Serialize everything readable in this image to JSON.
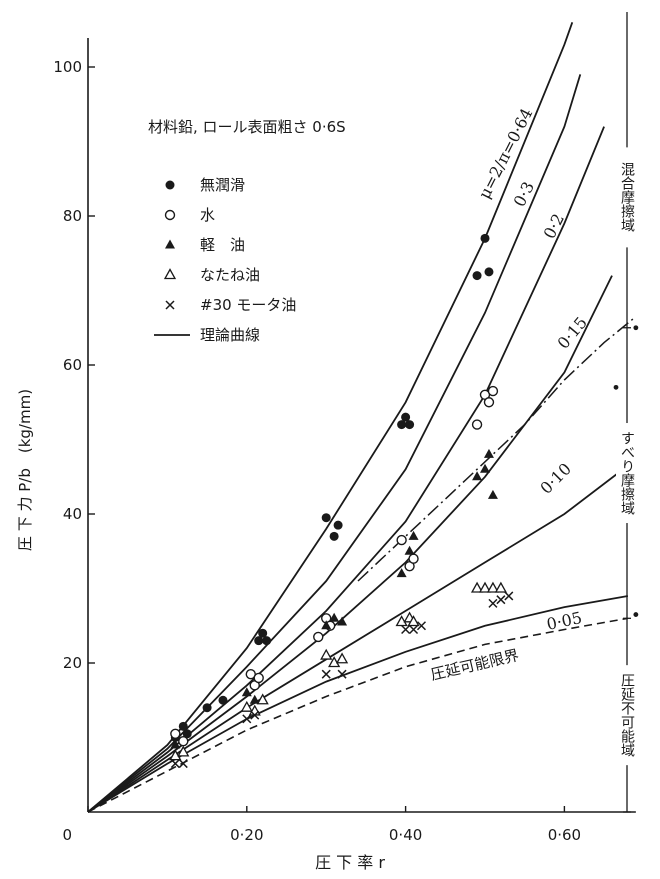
{
  "chart_data": {
    "type": "scatter",
    "title": "材料鉛, ロール表面粗さ 0·6S",
    "xlabel": "圧 下 率 r",
    "ylabel": "圧 下 力 P/b　(kg/mm)",
    "xlim": [
      0,
      0.69
    ],
    "ylim": [
      0,
      105
    ],
    "x_ticks": [
      {
        "value": 0,
        "label": "0"
      },
      {
        "value": 0.2,
        "label": "0·20"
      },
      {
        "value": 0.4,
        "label": "0·40"
      },
      {
        "value": 0.6,
        "label": "0·60"
      }
    ],
    "y_ticks": [
      {
        "value": 20,
        "label": "20"
      },
      {
        "value": 40,
        "label": "40"
      },
      {
        "value": 60,
        "label": "60"
      },
      {
        "value": 80,
        "label": "80"
      },
      {
        "value": 100,
        "label": "100"
      }
    ],
    "grid": false,
    "legend_position": "top-left",
    "legend": [
      {
        "marker": "filled-circle",
        "label": "無潤滑"
      },
      {
        "marker": "open-circle",
        "label": "水"
      },
      {
        "marker": "filled-triangle",
        "label": "軽　油"
      },
      {
        "marker": "open-triangle",
        "label": "なたね油"
      },
      {
        "marker": "cross",
        "label": "#30 モータ油"
      },
      {
        "marker": "line",
        "label": "理論曲線"
      }
    ],
    "series": [
      {
        "name": "無潤滑",
        "marker": "filled-circle",
        "points": [
          [
            0.11,
            10
          ],
          [
            0.12,
            11.5
          ],
          [
            0.125,
            10.5
          ],
          [
            0.15,
            14
          ],
          [
            0.17,
            15
          ],
          [
            0.215,
            23
          ],
          [
            0.22,
            24
          ],
          [
            0.225,
            23
          ],
          [
            0.3,
            39.5
          ],
          [
            0.31,
            37
          ],
          [
            0.315,
            38.5
          ],
          [
            0.395,
            52
          ],
          [
            0.4,
            53
          ],
          [
            0.405,
            52
          ],
          [
            0.49,
            72
          ],
          [
            0.5,
            77
          ],
          [
            0.505,
            72.5
          ]
        ]
      },
      {
        "name": "水",
        "marker": "open-circle",
        "points": [
          [
            0.11,
            10.5
          ],
          [
            0.12,
            9.5
          ],
          [
            0.205,
            18.5
          ],
          [
            0.21,
            17
          ],
          [
            0.215,
            18
          ],
          [
            0.29,
            23.5
          ],
          [
            0.3,
            26
          ],
          [
            0.305,
            25
          ],
          [
            0.395,
            36.5
          ],
          [
            0.405,
            33
          ],
          [
            0.41,
            34
          ],
          [
            0.49,
            52
          ],
          [
            0.5,
            56
          ],
          [
            0.505,
            55
          ],
          [
            0.51,
            56.5
          ]
        ]
      },
      {
        "name": "軽　油",
        "marker": "filled-triangle",
        "points": [
          [
            0.11,
            9
          ],
          [
            0.12,
            8
          ],
          [
            0.2,
            16
          ],
          [
            0.21,
            15
          ],
          [
            0.3,
            25
          ],
          [
            0.31,
            26
          ],
          [
            0.32,
            25.5
          ],
          [
            0.395,
            32
          ],
          [
            0.405,
            35
          ],
          [
            0.41,
            37
          ],
          [
            0.49,
            45
          ],
          [
            0.5,
            46
          ],
          [
            0.505,
            48
          ],
          [
            0.51,
            42.5
          ]
        ]
      },
      {
        "name": "なたね油",
        "marker": "open-triangle",
        "points": [
          [
            0.11,
            7.5
          ],
          [
            0.12,
            8
          ],
          [
            0.2,
            14
          ],
          [
            0.21,
            13.5
          ],
          [
            0.22,
            15
          ],
          [
            0.3,
            21
          ],
          [
            0.31,
            20
          ],
          [
            0.32,
            20.5
          ],
          [
            0.395,
            25.5
          ],
          [
            0.405,
            26
          ],
          [
            0.41,
            25.5
          ],
          [
            0.49,
            30
          ],
          [
            0.5,
            30
          ],
          [
            0.51,
            30
          ],
          [
            0.52,
            30
          ]
        ]
      },
      {
        "name": "#30 モータ油",
        "marker": "cross",
        "points": [
          [
            0.11,
            6.5
          ],
          [
            0.12,
            6.5
          ],
          [
            0.2,
            12.5
          ],
          [
            0.21,
            13
          ],
          [
            0.3,
            18.5
          ],
          [
            0.32,
            18.5
          ],
          [
            0.4,
            24.5
          ],
          [
            0.41,
            24.5
          ],
          [
            0.42,
            25
          ],
          [
            0.51,
            28
          ],
          [
            0.52,
            28.5
          ],
          [
            0.53,
            29
          ]
        ]
      }
    ],
    "theory_curves": [
      {
        "label": "μ=2/π=0·64",
        "points": [
          [
            0,
            0
          ],
          [
            0.1,
            9
          ],
          [
            0.2,
            22
          ],
          [
            0.3,
            38
          ],
          [
            0.4,
            55
          ],
          [
            0.5,
            77
          ],
          [
            0.6,
            103
          ],
          [
            0.61,
            106
          ]
        ]
      },
      {
        "label": "0·3",
        "points": [
          [
            0,
            0
          ],
          [
            0.1,
            8.5
          ],
          [
            0.2,
            19.5
          ],
          [
            0.3,
            31
          ],
          [
            0.4,
            46
          ],
          [
            0.5,
            67
          ],
          [
            0.6,
            92
          ],
          [
            0.62,
            99
          ]
        ]
      },
      {
        "label": "0·2",
        "points": [
          [
            0,
            0
          ],
          [
            0.1,
            8
          ],
          [
            0.2,
            17
          ],
          [
            0.3,
            27
          ],
          [
            0.4,
            39
          ],
          [
            0.5,
            56
          ],
          [
            0.6,
            79
          ],
          [
            0.65,
            92
          ]
        ]
      },
      {
        "label": "0·15",
        "points": [
          [
            0,
            0
          ],
          [
            0.1,
            7.5
          ],
          [
            0.2,
            15.5
          ],
          [
            0.3,
            24
          ],
          [
            0.4,
            33.5
          ],
          [
            0.5,
            45
          ],
          [
            0.6,
            59
          ],
          [
            0.66,
            72
          ]
        ]
      },
      {
        "label": "0·10",
        "points": [
          [
            0,
            0
          ],
          [
            0.1,
            7
          ],
          [
            0.2,
            14
          ],
          [
            0.3,
            20.5
          ],
          [
            0.4,
            27
          ],
          [
            0.5,
            33.5
          ],
          [
            0.6,
            40
          ],
          [
            0.68,
            46.5
          ]
        ]
      },
      {
        "label": "0·05",
        "points": [
          [
            0,
            0
          ],
          [
            0.1,
            6.5
          ],
          [
            0.2,
            12.5
          ],
          [
            0.3,
            17.5
          ],
          [
            0.4,
            21.5
          ],
          [
            0.5,
            25
          ],
          [
            0.6,
            27.5
          ],
          [
            0.68,
            29
          ]
        ]
      }
    ],
    "limit_curve": {
      "label": "圧延可能限界",
      "style": "dashed",
      "points": [
        [
          0,
          0
        ],
        [
          0.1,
          5.5
        ],
        [
          0.2,
          11
        ],
        [
          0.3,
          15.5
        ],
        [
          0.4,
          19.5
        ],
        [
          0.5,
          22.5
        ],
        [
          0.6,
          24.5
        ],
        [
          0.68,
          26
        ]
      ]
    },
    "boundary_curve": {
      "style": "dash-dot",
      "points": [
        [
          0.34,
          31
        ],
        [
          0.4,
          37
        ],
        [
          0.45,
          42
        ],
        [
          0.5,
          47
        ],
        [
          0.55,
          52
        ],
        [
          0.6,
          58
        ],
        [
          0.65,
          63
        ],
        [
          0.69,
          66.5
        ]
      ]
    },
    "regions": [
      {
        "label": "圧延不可能域",
        "y_range": [
          0,
          26
        ]
      },
      {
        "label": "すべり摩擦域",
        "y_range": [
          26,
          65
        ]
      },
      {
        "label": "混合摩擦域",
        "y_range": [
          65,
          105
        ]
      }
    ],
    "stray_marks": [
      [
        0.665,
        57
      ],
      [
        0.69,
        26.5
      ],
      [
        0.69,
        65
      ]
    ]
  }
}
